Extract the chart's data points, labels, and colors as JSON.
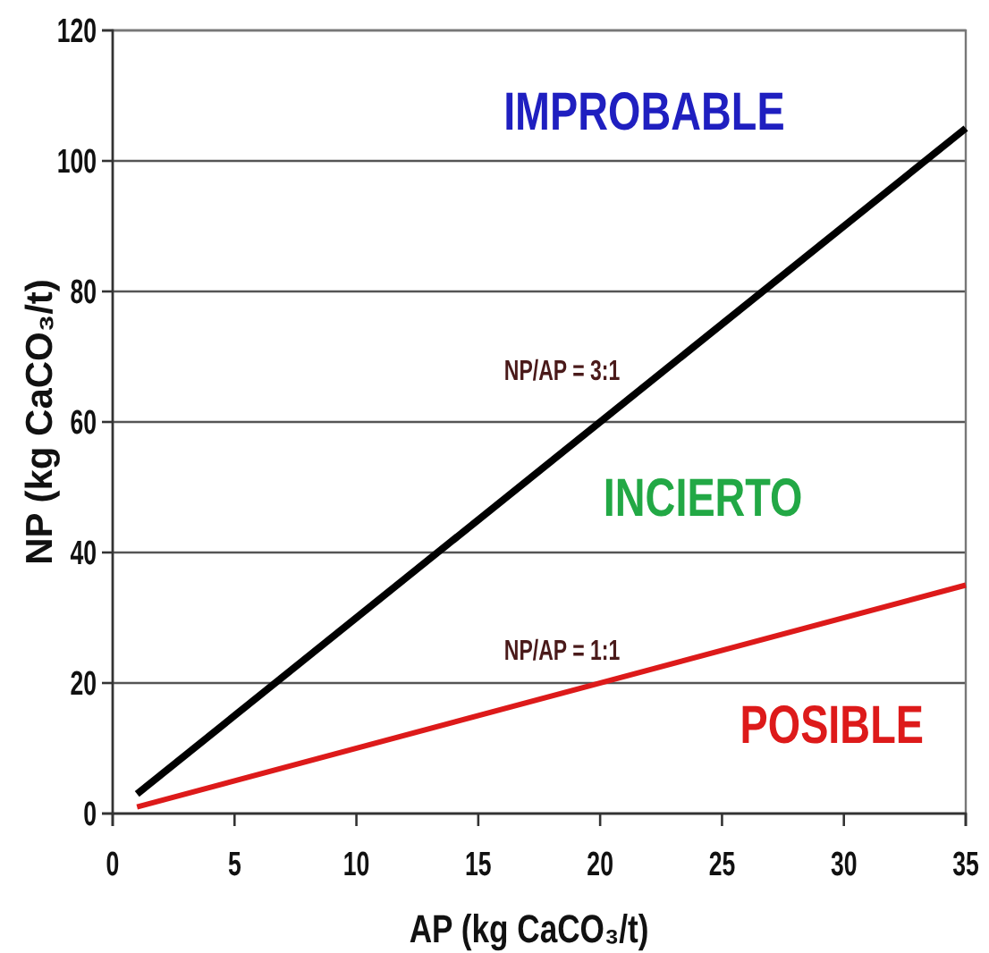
{
  "chart_data": {
    "type": "line",
    "xlabel": "AP (kg CaCO₃/t)",
    "ylabel": "NP (kg CaCO₃/t)",
    "xlim": [
      0,
      35
    ],
    "xticks": [
      0,
      5,
      10,
      15,
      20,
      25,
      30,
      35
    ],
    "ylim": [
      0,
      120
    ],
    "yticks": [
      0,
      20,
      40,
      60,
      80,
      100,
      120
    ],
    "grid": "y",
    "x": [
      1,
      35
    ],
    "series": [
      {
        "name": "NP/AP = 3:1",
        "color": "#000000",
        "values": [
          3,
          105
        ]
      },
      {
        "name": "NP/AP = 1:1",
        "color": "#dd1a1a",
        "values": [
          1,
          35
        ]
      }
    ],
    "annotations": [
      "IMPROBABLE",
      "INCIERTO",
      "POSIBLE"
    ]
  }
}
